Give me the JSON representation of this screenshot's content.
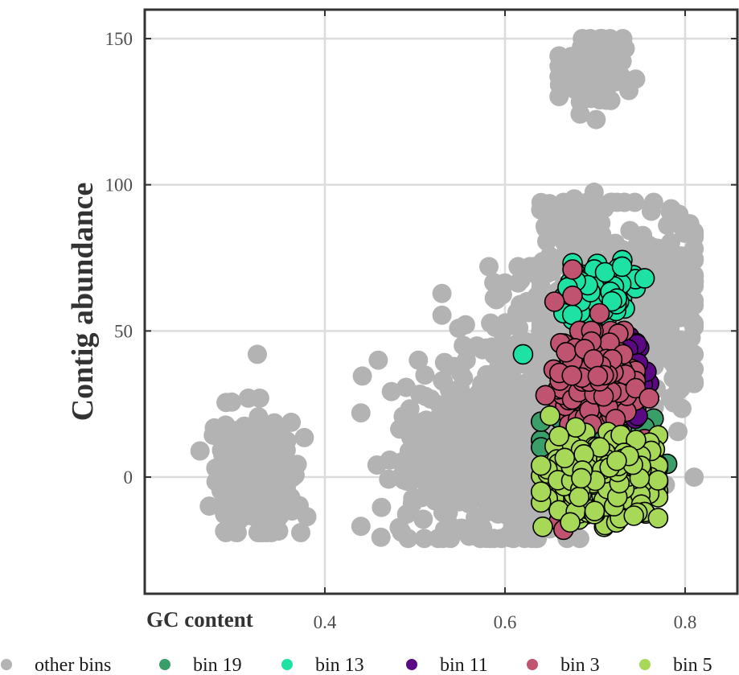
{
  "chart_data": {
    "type": "scatter",
    "xlabel": "GC content",
    "ylabel": "Contig abundance",
    "xlim": [
      0.2,
      0.85
    ],
    "ylim": [
      -40,
      160
    ],
    "x_ticks": [
      0.4,
      0.6,
      0.8
    ],
    "x_tick_labels": [
      "0.4",
      "0.6",
      "0.8"
    ],
    "y_ticks": [
      0,
      50,
      100,
      150
    ],
    "y_tick_labels": [
      "0",
      "50",
      "100",
      "150"
    ],
    "grid": true,
    "legend_position": "bottom",
    "series": [
      {
        "name": "other bins",
        "color": "#b3b3b3",
        "outlined": false,
        "clusters": [
          {
            "cx": 0.32,
            "cy": 0,
            "sx": 0.022,
            "sy": 10,
            "n": 240,
            "xmin": 0.25,
            "xmax": 0.38,
            "ymin": -19,
            "ymax": 27
          },
          {
            "cx": 0.7,
            "cy": 140,
            "sx": 0.018,
            "sy": 7,
            "n": 90,
            "xmin": 0.66,
            "xmax": 0.76,
            "ymin": 121,
            "ymax": 150
          },
          {
            "cx": 0.6,
            "cy": 5,
            "sx": 0.06,
            "sy": 14,
            "n": 520,
            "xmin": 0.44,
            "xmax": 0.81,
            "ymin": -21,
            "ymax": 40
          },
          {
            "cx": 0.63,
            "cy": 40,
            "sx": 0.04,
            "sy": 18,
            "n": 220,
            "xmin": 0.53,
            "xmax": 0.7,
            "ymin": 5,
            "ymax": 72
          },
          {
            "cx": 0.73,
            "cy": 60,
            "sx": 0.05,
            "sy": 18,
            "n": 380,
            "xmin": 0.64,
            "xmax": 0.81,
            "ymin": -16,
            "ymax": 94
          },
          {
            "cx": 0.67,
            "cy": 88,
            "sx": 0.015,
            "sy": 5,
            "n": 40,
            "xmin": 0.63,
            "xmax": 0.72,
            "ymin": 80,
            "ymax": 103
          }
        ],
        "points": [
          {
            "x": 0.325,
            "y": 42
          }
        ]
      },
      {
        "name": "bin 19",
        "color": "#3a9e68",
        "outlined": true,
        "clusters": [
          {
            "cx": 0.71,
            "cy": 12,
            "sx": 0.035,
            "sy": 8,
            "n": 70,
            "xmin": 0.64,
            "xmax": 0.77,
            "ymin": -5,
            "ymax": 26
          }
        ],
        "points": [
          {
            "x": 0.78,
            "y": 4.5
          },
          {
            "x": 0.765,
            "y": 20
          },
          {
            "x": 0.755,
            "y": 17
          },
          {
            "x": 0.74,
            "y": 24
          }
        ]
      },
      {
        "name": "bin 13",
        "color": "#1ee2a3",
        "outlined": true,
        "clusters": [
          {
            "cx": 0.7,
            "cy": 64,
            "sx": 0.02,
            "sy": 5,
            "n": 90,
            "xmin": 0.665,
            "xmax": 0.745,
            "ymin": 52,
            "ymax": 75
          }
        ],
        "points": [
          {
            "x": 0.62,
            "y": 42
          },
          {
            "x": 0.755,
            "y": 68
          },
          {
            "x": 0.73,
            "y": 72
          }
        ]
      },
      {
        "name": "bin 11",
        "color": "#5c0783",
        "outlined": true,
        "clusters": [
          {
            "cx": 0.735,
            "cy": 34,
            "sx": 0.012,
            "sy": 7,
            "n": 70,
            "xmin": 0.71,
            "xmax": 0.76,
            "ymin": 18,
            "ymax": 48
          }
        ],
        "points": []
      },
      {
        "name": "bin 3",
        "color": "#bf5370",
        "outlined": true,
        "clusters": [
          {
            "cx": 0.7,
            "cy": 35,
            "sx": 0.02,
            "sy": 7,
            "n": 260,
            "xmin": 0.64,
            "xmax": 0.745,
            "ymin": 18,
            "ymax": 50
          }
        ],
        "points": [
          {
            "x": 0.675,
            "y": 71
          },
          {
            "x": 0.705,
            "y": 56
          },
          {
            "x": 0.675,
            "y": 62
          },
          {
            "x": 0.655,
            "y": 60
          },
          {
            "x": 0.645,
            "y": 28
          },
          {
            "x": 0.755,
            "y": 13
          },
          {
            "x": 0.66,
            "y": -15
          },
          {
            "x": 0.665,
            "y": -18
          },
          {
            "x": 0.76,
            "y": 27
          }
        ]
      },
      {
        "name": "bin 5",
        "color": "#a7d858",
        "outlined": true,
        "clusters": [
          {
            "cx": 0.71,
            "cy": 0,
            "sx": 0.03,
            "sy": 7,
            "n": 330,
            "xmin": 0.64,
            "xmax": 0.77,
            "ymin": -17,
            "ymax": 17
          }
        ],
        "points": [
          {
            "x": 0.65,
            "y": 21
          },
          {
            "x": 0.64,
            "y": -5
          },
          {
            "x": 0.77,
            "y": -14
          },
          {
            "x": 0.66,
            "y": 14
          }
        ]
      }
    ]
  }
}
